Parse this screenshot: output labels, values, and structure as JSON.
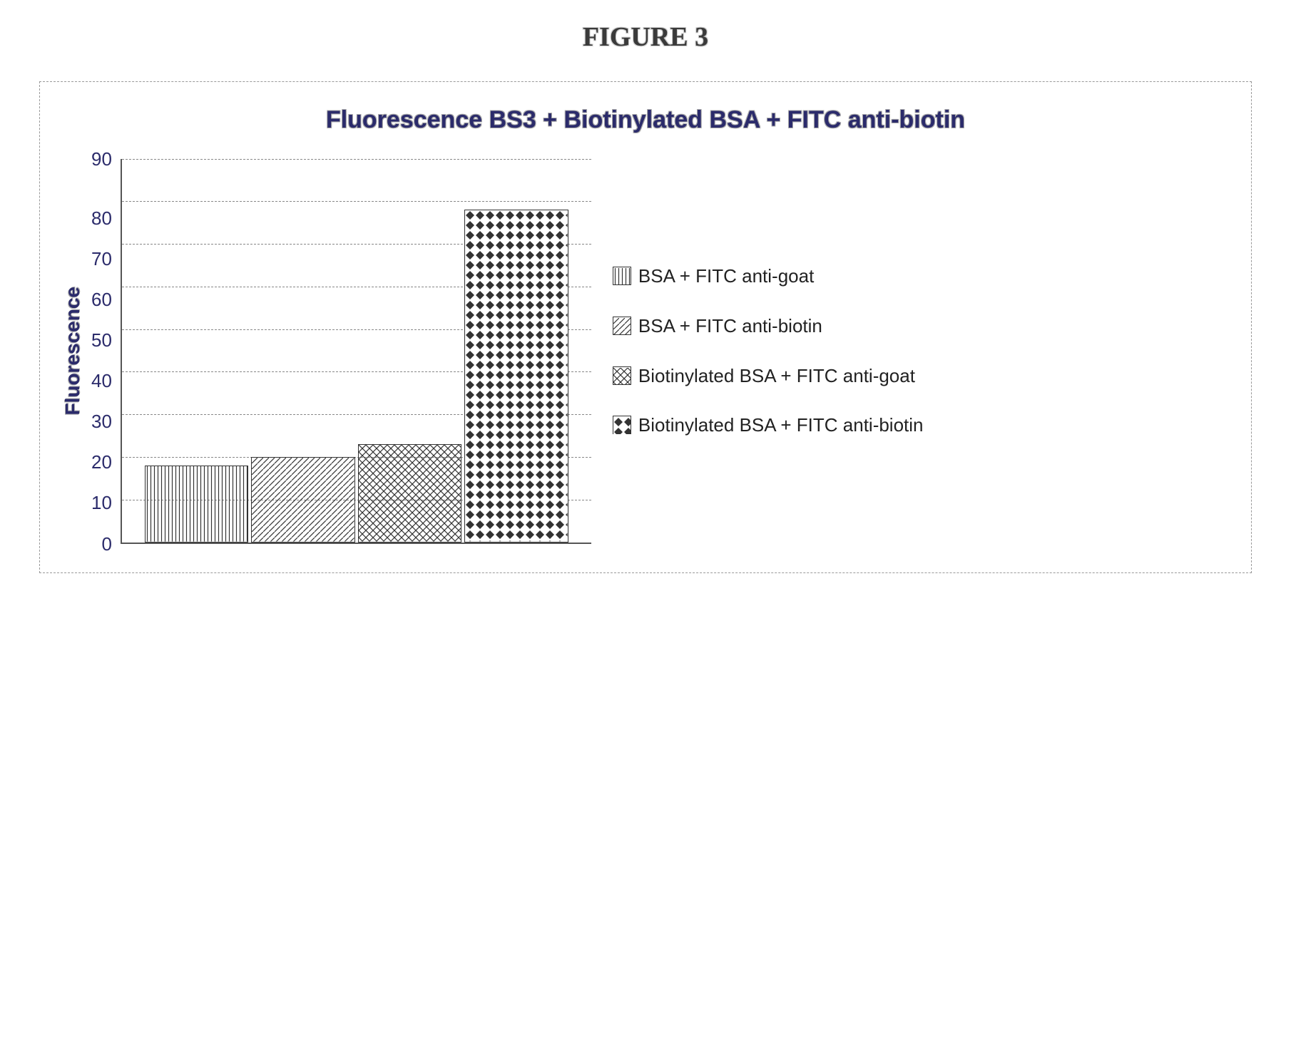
{
  "figure_label": "FIGURE 3",
  "chart": {
    "type": "bar",
    "title": "Fluorescence BS3 + Biotinylated BSA + FITC anti-biotin",
    "ylabel": "Fluorescence",
    "ylim": [
      0,
      90
    ],
    "ytick_step": 10,
    "yticks": [
      90,
      80,
      70,
      60,
      50,
      40,
      30,
      20,
      10,
      0
    ],
    "grid_color": "#888888",
    "grid_style": "dashed",
    "axis_color": "#555555",
    "tick_label_color": "#2b2b6b",
    "title_color": "#2b2b6b",
    "title_fontsize": 34,
    "ylabel_fontsize": 28,
    "tick_fontsize": 26,
    "background_color": "#ffffff",
    "bars": [
      {
        "label": "BSA + FITC anti-goat",
        "value": 18,
        "pattern": "vertical-lines"
      },
      {
        "label": "BSA + FITC anti-biotin",
        "value": 20,
        "pattern": "diagonal-lines"
      },
      {
        "label": "Biotinylated BSA + FITC anti-goat",
        "value": 23,
        "pattern": "crosshatch"
      },
      {
        "label": "Biotinylated BSA + FITC anti-biotin",
        "value": 78,
        "pattern": "diamond-dots"
      }
    ],
    "bar_border_color": "#333333",
    "pattern_color": "#333333",
    "legend_fontsize": 26,
    "legend_text_color": "#222222"
  }
}
